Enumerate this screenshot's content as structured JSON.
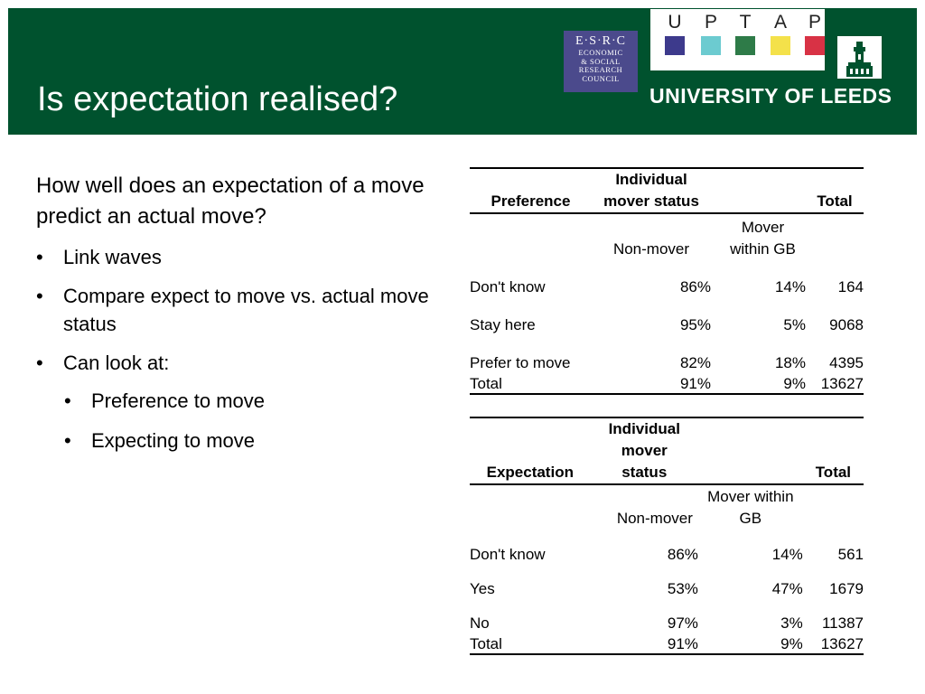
{
  "header": {
    "title": "Is expectation realised?",
    "esrc_logo": {
      "big": "E·S·R·C",
      "lines": [
        "ECONOMIC",
        "& SOCIAL",
        "RESEARCH",
        "COUNCIL"
      ]
    },
    "uptap_logo": {
      "letters": [
        "U",
        "P",
        "T",
        "A",
        "P"
      ],
      "colors": [
        "#3d3a8c",
        "#6ccbd0",
        "#2e7b48",
        "#f4e14a",
        "#d83245"
      ]
    },
    "leeds_name": "UNIVERSITY OF LEEDS"
  },
  "content": {
    "lead": "How well does an expectation of a move predict an actual move?",
    "bullets": [
      "Link waves",
      "Compare expect to move vs. actual move status",
      "Can look at:"
    ],
    "sub_bullets": [
      "Preference to move",
      "Expecting to move"
    ]
  },
  "table1": {
    "header": {
      "col1": "Preference",
      "col2": "Individual mover status",
      "col4": "Total"
    },
    "subheader": {
      "col2": "Non-mover",
      "col3": "Mover within GB"
    },
    "rows": [
      {
        "label": "Don't know",
        "nonmover": "86%",
        "mover": "14%",
        "total": "164"
      },
      {
        "label": "Stay here",
        "nonmover": "95%",
        "mover": "5%",
        "total": "9068"
      },
      {
        "label": "Prefer to move",
        "nonmover": "82%",
        "mover": "18%",
        "total": "4395"
      },
      {
        "label": "Total",
        "nonmover": "91%",
        "mover": "9%",
        "total": "13627"
      }
    ]
  },
  "table2": {
    "header": {
      "col1": "Expectation",
      "col2": "Individual mover status",
      "col4": "Total"
    },
    "subheader": {
      "col2": "Non-mover",
      "col3": "Mover within GB"
    },
    "rows": [
      {
        "label": "Don't know",
        "nonmover": "86%",
        "mover": "14%",
        "total": "561"
      },
      {
        "label": "Yes",
        "nonmover": "53%",
        "mover": "47%",
        "total": "1679"
      },
      {
        "label": "No",
        "nonmover": "97%",
        "mover": "3%",
        "total": "11387"
      },
      {
        "label": "Total",
        "nonmover": "91%",
        "mover": "9%",
        "total": "13627"
      }
    ]
  }
}
